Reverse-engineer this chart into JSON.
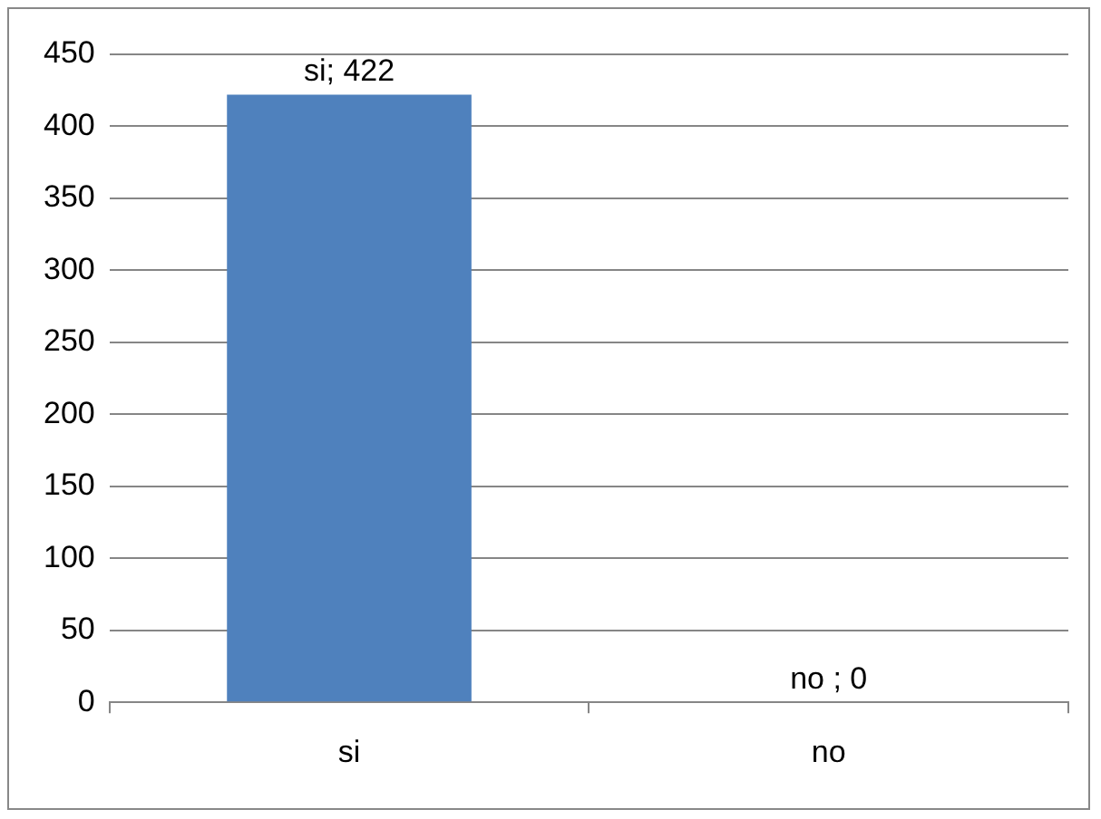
{
  "chart_data": {
    "type": "bar",
    "categories": [
      "si",
      "no"
    ],
    "values": [
      422,
      0
    ],
    "color": "#4f81bd",
    "value_labels": [
      "si; 422",
      "no ; 0"
    ],
    "ylim": [
      0,
      450
    ],
    "yticks": [
      0,
      50,
      100,
      150,
      200,
      250,
      300,
      350,
      400,
      450
    ],
    "grid": "y",
    "legend": false
  }
}
